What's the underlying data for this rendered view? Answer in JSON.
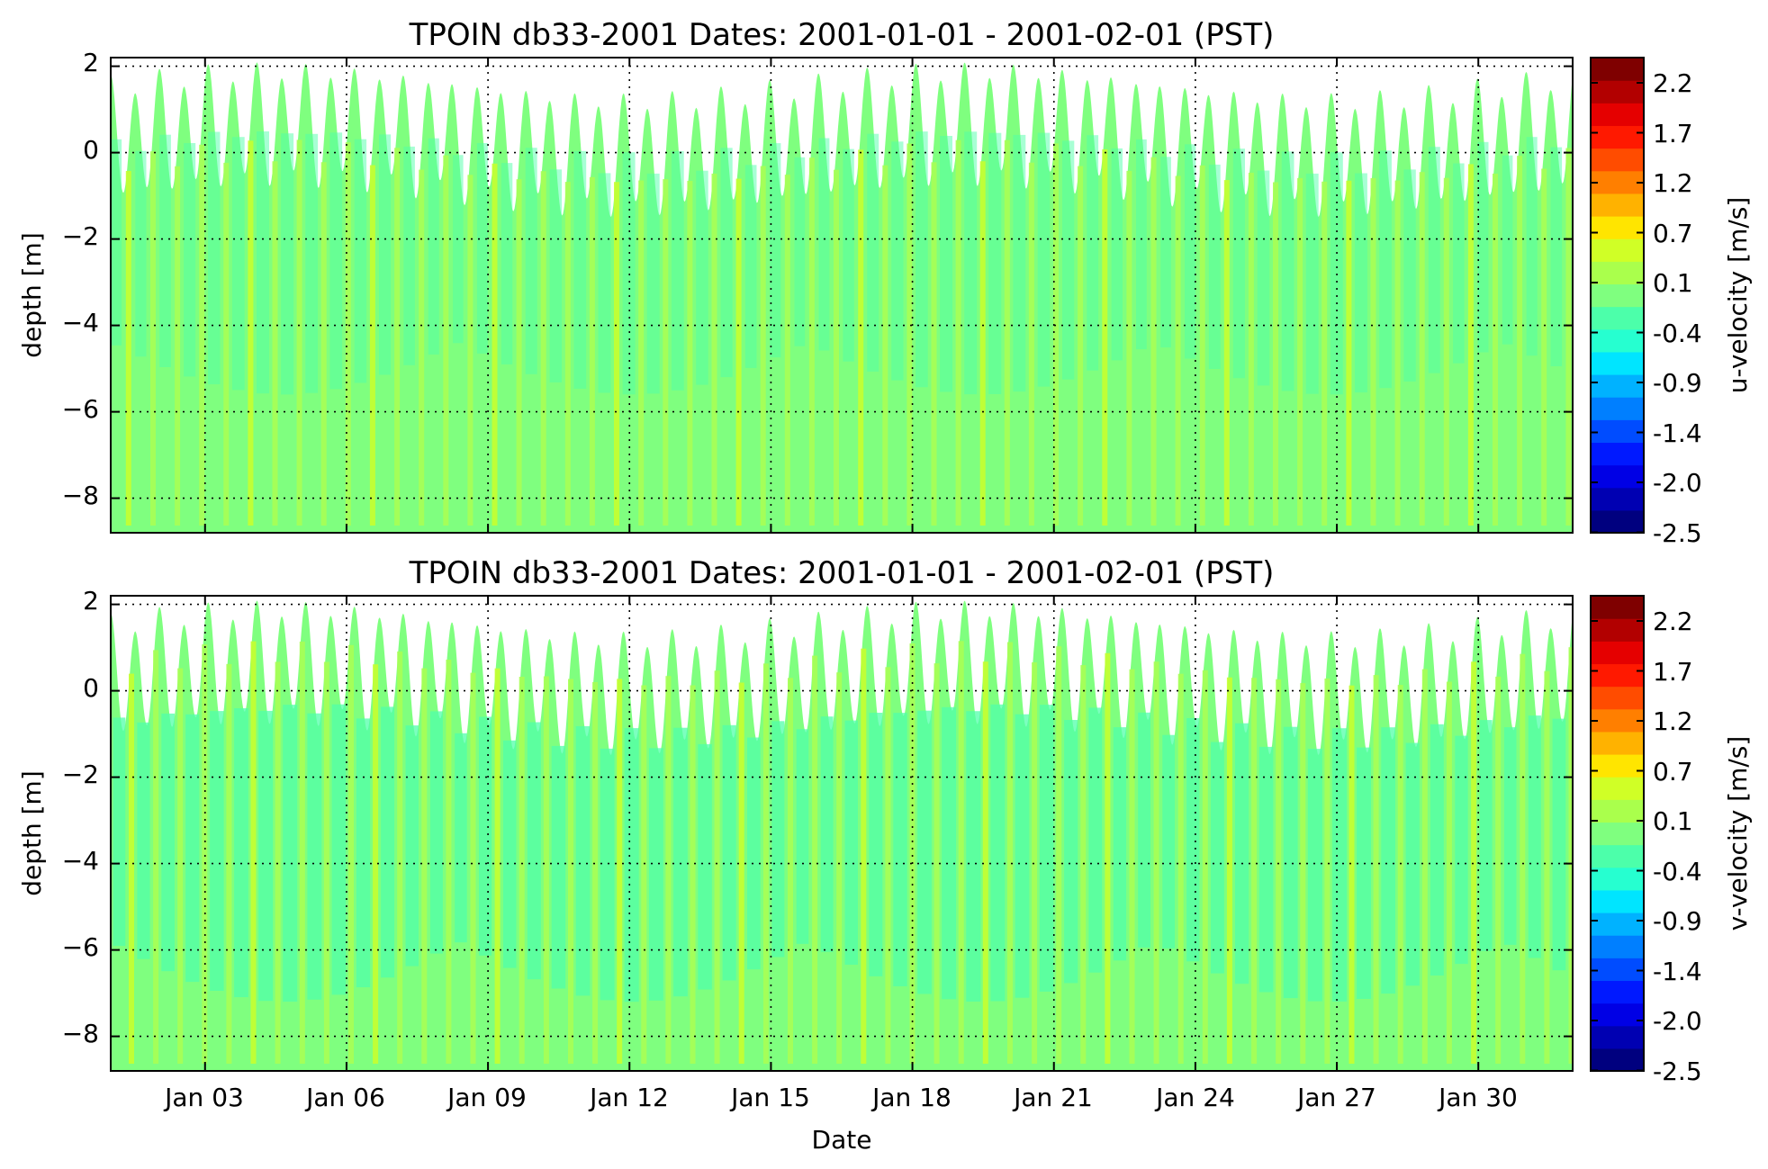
{
  "chart_data": [
    {
      "type": "heatmap",
      "title": "TPOIN db33-2001 Dates: 2001-01-01 - 2001-02-01 (PST)",
      "xlabel": "",
      "ylabel": "depth [m]",
      "colorbar_label": "u-velocity [m/s]",
      "x_range": [
        "2001-01-01",
        "2001-02-01"
      ],
      "ylim": [
        -8.8,
        2.2
      ],
      "yticks": [
        "2",
        "0",
        "−2",
        "−4",
        "−6",
        "−8"
      ],
      "ytick_values": [
        2,
        0,
        -2,
        -4,
        -6,
        -8
      ],
      "xticks": [],
      "grid": true,
      "dominant_value_range": [
        -0.4,
        0.4
      ]
    },
    {
      "type": "heatmap",
      "title": "TPOIN db33-2001 Dates: 2001-01-01 - 2001-02-01 (PST)",
      "xlabel": "Date",
      "ylabel": "depth [m]",
      "colorbar_label": "v-velocity [m/s]",
      "x_range": [
        "2001-01-01",
        "2001-02-01"
      ],
      "ylim": [
        -8.8,
        2.2
      ],
      "yticks": [
        "2",
        "0",
        "−2",
        "−4",
        "−6",
        "−8"
      ],
      "ytick_values": [
        2,
        0,
        -2,
        -4,
        -6,
        -8
      ],
      "xticks": [
        "Jan 03",
        "Jan 06",
        "Jan 09",
        "Jan 12",
        "Jan 15",
        "Jan 18",
        "Jan 21",
        "Jan 24",
        "Jan 27",
        "Jan 30"
      ],
      "xtick_dates": [
        "2001-01-03",
        "2001-01-06",
        "2001-01-09",
        "2001-01-12",
        "2001-01-15",
        "2001-01-18",
        "2001-01-21",
        "2001-01-24",
        "2001-01-27",
        "2001-01-30"
      ],
      "grid": true,
      "dominant_value_range": [
        -0.4,
        0.4
      ]
    }
  ],
  "colorbar": {
    "tick_labels": [
      "2.2",
      "1.7",
      "1.2",
      "0.7",
      "0.1",
      "-0.4",
      "-0.9",
      "-1.4",
      "-2.0",
      "-2.5"
    ],
    "range": [
      -2.5,
      2.5
    ],
    "colors": [
      "#00007f",
      "#0000b2",
      "#0000e5",
      "#0019ff",
      "#004cff",
      "#007fff",
      "#00b2ff",
      "#00e5ff",
      "#26ffd0",
      "#4cffaa",
      "#7fff7f",
      "#aaff4c",
      "#d0ff26",
      "#ffe500",
      "#ffb200",
      "#ff7f00",
      "#ff4c00",
      "#ff1900",
      "#e50000",
      "#b20000",
      "#7f0000"
    ]
  },
  "fill_colors": {
    "main": "#7fff7f",
    "light_green": "#a8ff55",
    "cyan_green": "#50ffaa",
    "yellow_green": "#c6ff30"
  }
}
